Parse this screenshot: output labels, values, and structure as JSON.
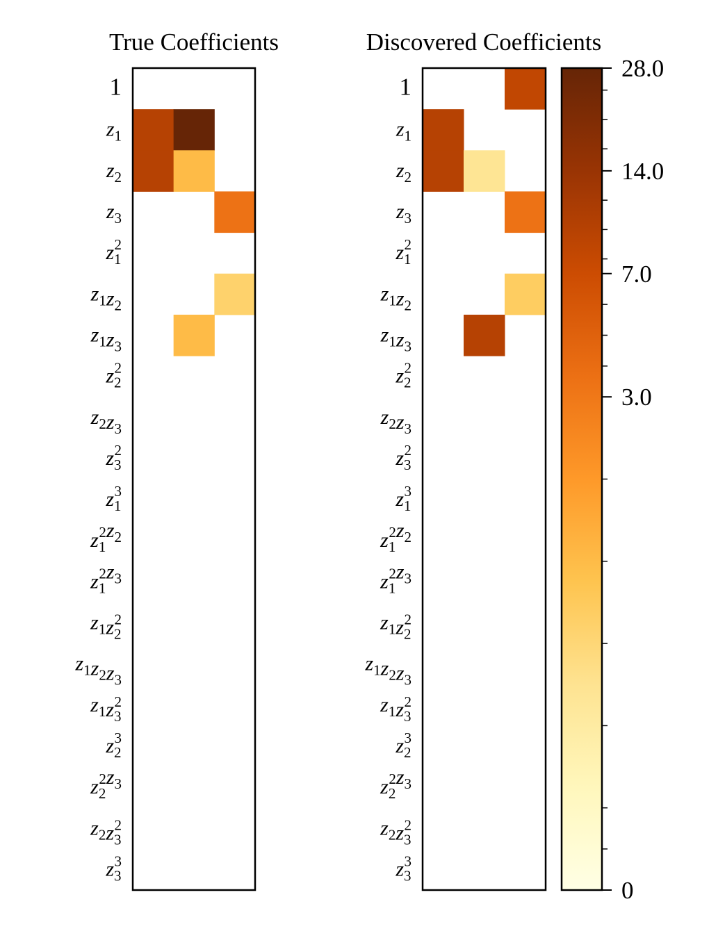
{
  "chart_data": [
    {
      "type": "heatmap",
      "title": "True Coefficients",
      "row_labels": [
        "1",
        "z1",
        "z2",
        "z3",
        "z1^2",
        "z1z2",
        "z1z3",
        "z2^2",
        "z2z3",
        "z3^2",
        "z1^3",
        "z1^2z2",
        "z1^2z3",
        "z1z2^2",
        "z1z2z3",
        "z1z3^2",
        "z2^3",
        "z2^2z3",
        "z2z3^2",
        "z3^3"
      ],
      "columns": 3,
      "values": [
        [
          0,
          0,
          0
        ],
        [
          10,
          28,
          0
        ],
        [
          10,
          2,
          0
        ],
        [
          0,
          0,
          3.5
        ],
        [
          0,
          0,
          0
        ],
        [
          0,
          0,
          1.6
        ],
        [
          0,
          2,
          0
        ],
        [
          0,
          0,
          0
        ],
        [
          0,
          0,
          0
        ],
        [
          0,
          0,
          0
        ],
        [
          0,
          0,
          0
        ],
        [
          0,
          0,
          0
        ],
        [
          0,
          0,
          0
        ],
        [
          0,
          0,
          0
        ],
        [
          0,
          0,
          0
        ],
        [
          0,
          0,
          0
        ],
        [
          0,
          0,
          0
        ],
        [
          0,
          0,
          0
        ],
        [
          0,
          0,
          0
        ],
        [
          0,
          0,
          0
        ]
      ]
    },
    {
      "type": "heatmap",
      "title": "Discovered Coefficients",
      "row_labels": [
        "1",
        "z1",
        "z2",
        "z3",
        "z1^2",
        "z1z2",
        "z1z3",
        "z2^2",
        "z2z3",
        "z3^2",
        "z1^3",
        "z1^2z2",
        "z1^2z3",
        "z1z2^2",
        "z1z2z3",
        "z1z3^2",
        "z2^3",
        "z2^2z3",
        "z2z3^2",
        "z3^3"
      ],
      "columns": 3,
      "values": [
        [
          0,
          0,
          8.5
        ],
        [
          10,
          0,
          0
        ],
        [
          10,
          1.2,
          0
        ],
        [
          0,
          0,
          3.5
        ],
        [
          0,
          0,
          0
        ],
        [
          0,
          0,
          1.7
        ],
        [
          0,
          10,
          0
        ],
        [
          0,
          0,
          0
        ],
        [
          0,
          0,
          0
        ],
        [
          0,
          0,
          0
        ],
        [
          0,
          0,
          0
        ],
        [
          0,
          0,
          0
        ],
        [
          0,
          0,
          0
        ],
        [
          0,
          0,
          0
        ],
        [
          0,
          0,
          0
        ],
        [
          0,
          0,
          0
        ],
        [
          0,
          0,
          0
        ],
        [
          0,
          0,
          0
        ],
        [
          0,
          0,
          0
        ],
        [
          0,
          0,
          0
        ]
      ]
    }
  ],
  "colorbar": {
    "colormap": "YlOrBr",
    "tick_labels": [
      "28.0",
      "14.0",
      "7.0",
      "3.0",
      "0"
    ],
    "tick_values": [
      28,
      14,
      7,
      3,
      0
    ],
    "range": [
      0,
      28
    ],
    "stops": [
      "#ffffe5",
      "#fff7bc",
      "#fee391",
      "#fec44f",
      "#fe9929",
      "#ec7014",
      "#cc4c02",
      "#993404",
      "#662506"
    ]
  }
}
